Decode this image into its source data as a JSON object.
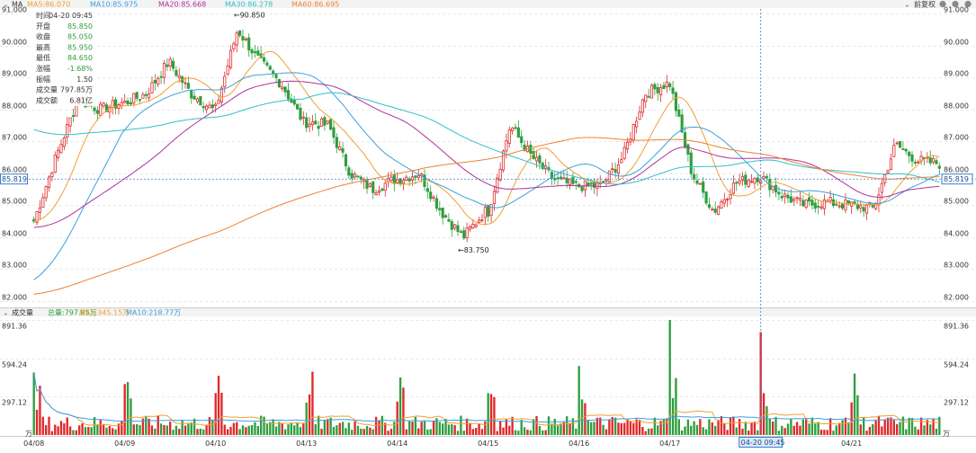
{
  "price_header": {
    "indicator": "MA",
    "ma5_label": "MA5:86.070",
    "ma10_label": "MA10:85.975",
    "ma20_label": "MA20:85.668",
    "ma30_label": "MA30:86.278",
    "ma60_label": "MA60:86.695",
    "adjust_label": "前复权"
  },
  "volume_header": {
    "title": "成交量",
    "total_label": "总量:797.85万",
    "ma5_label": "MA5:345.15万",
    "ma10_label": "MA10:218.77万"
  },
  "info_box": {
    "rows": [
      {
        "label": "时间",
        "value": "04-20 09:45"
      },
      {
        "label": "开盘",
        "value": "85.850"
      },
      {
        "label": "收盘",
        "value": "85.050"
      },
      {
        "label": "最高",
        "value": "85.950"
      },
      {
        "label": "最低",
        "value": "84.650"
      },
      {
        "label": "涨幅",
        "value": "-1.68%"
      },
      {
        "label": "振幅",
        "value": "1.50"
      },
      {
        "label": "成交量",
        "value": "797.85万"
      },
      {
        "label": "成交额",
        "value": "6.81亿"
      }
    ]
  },
  "annotations": {
    "high_label": "←90.850",
    "low_label": "←83.750",
    "cursor_price": "85.819",
    "cursor_time": "04-20 09:45",
    "volume_unit": "万"
  },
  "colors": {
    "up": "#e0292b",
    "down": "#2f9e3e",
    "ma5": "#f0a030",
    "ma10": "#3aa0e0",
    "ma20": "#b0309a",
    "ma30": "#30c0c8",
    "ma60": "#f08030",
    "cursor": "#3a7fd0"
  },
  "chart_data": {
    "type": "candlestick",
    "price_axis": {
      "ticks": [
        "91.000",
        "90.000",
        "89.000",
        "88.000",
        "87.000",
        "86.000",
        "85.000",
        "84.000",
        "83.000",
        "82.000"
      ],
      "range": [
        82,
        91
      ]
    },
    "volume_axis": {
      "ticks": [
        "891.36",
        "594.24",
        "297.12"
      ],
      "range": [
        0,
        891.36
      ],
      "unit": "万"
    },
    "x_axis": {
      "ticks": [
        "04/08",
        "04/09",
        "04/10",
        "04/13",
        "04/14",
        "04/15",
        "04/16",
        "04/17",
        "04/21"
      ]
    },
    "segments": [
      {
        "label": "04/08",
        "start": 84.5,
        "end": 88.2,
        "via": [
          86.5,
          88.3,
          88.0
        ]
      },
      {
        "label": "04/09",
        "start": 88.2,
        "end": 88.0,
        "via": [
          88.5,
          89.5,
          88.5
        ]
      },
      {
        "label": "04/10",
        "start": 88.0,
        "end": 87.6,
        "via": [
          90.5,
          89.5,
          88.8
        ]
      },
      {
        "label": "04/13",
        "start": 87.6,
        "end": 85.8,
        "via": [
          87.5,
          86.0,
          85.5
        ]
      },
      {
        "label": "04/14",
        "start": 85.8,
        "end": 84.8,
        "via": [
          86.0,
          84.8,
          84.0
        ]
      },
      {
        "label": "04/15",
        "start": 84.8,
        "end": 85.6,
        "via": [
          87.5,
          86.5,
          85.8
        ]
      },
      {
        "label": "04/16",
        "start": 85.6,
        "end": 88.8,
        "via": [
          85.6,
          86.5,
          88.5
        ]
      },
      {
        "label": "04/17",
        "start": 88.8,
        "end": 85.9,
        "via": [
          86.0,
          84.8,
          85.7
        ]
      },
      {
        "label": "04/20",
        "start": 85.9,
        "end": 85.0,
        "via": [
          85.3,
          85.0,
          85.1
        ]
      },
      {
        "label": "04/21",
        "start": 85.0,
        "end": 86.3,
        "via": [
          84.9,
          86.9,
          86.4
        ]
      }
    ],
    "ma_endpoints": {
      "MA5": 86.07,
      "MA10": 85.975,
      "MA20": 85.668,
      "MA30": 86.278,
      "MA60": 86.695
    },
    "day_high": 90.85,
    "day_low": 83.75,
    "cursor_value": 85.819,
    "volume_spikes": [
      {
        "day": "04/17",
        "value": 891.36
      },
      {
        "day": "04/20",
        "value": 797.85
      }
    ]
  }
}
